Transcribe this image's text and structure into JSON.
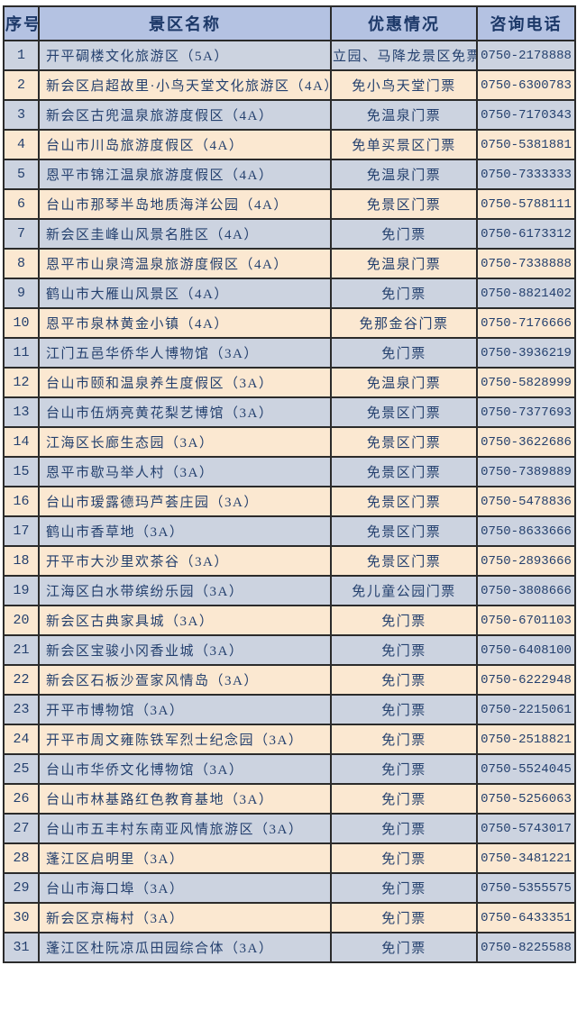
{
  "colors": {
    "header_bg": "#b4c2e2",
    "row_odd_bg": "#ccd3e0",
    "row_even_bg": "#fbe8d1",
    "border": "#2b2b2b",
    "text": "#24406e",
    "header_text": "#1c3868",
    "page_bg": "#ffffff"
  },
  "table": {
    "columns": [
      {
        "key": "index",
        "label": "序号"
      },
      {
        "key": "name",
        "label": "景区名称"
      },
      {
        "key": "discount",
        "label": "优惠情况"
      },
      {
        "key": "phone",
        "label": "咨询电话"
      }
    ],
    "rows": [
      {
        "index": "1",
        "name": "开平碉楼文化旅游区（5A）",
        "discount": "立园、马降龙景区免票",
        "phone": "0750-2178888"
      },
      {
        "index": "2",
        "name": "新会区启超故里·小鸟天堂文化旅游区（4A）",
        "discount": "免小鸟天堂门票",
        "phone": "0750-6300783"
      },
      {
        "index": "3",
        "name": "新会区古兜温泉旅游度假区（4A）",
        "discount": "免温泉门票",
        "phone": "0750-7170343"
      },
      {
        "index": "4",
        "name": "台山市川岛旅游度假区（4A）",
        "discount": "免单买景区门票",
        "phone": "0750-5381881"
      },
      {
        "index": "5",
        "name": "恩平市锦江温泉旅游度假区（4A）",
        "discount": "免温泉门票",
        "phone": "0750-7333333"
      },
      {
        "index": "6",
        "name": "台山市那琴半岛地质海洋公园（4A）",
        "discount": "免景区门票",
        "phone": "0750-5788111"
      },
      {
        "index": "7",
        "name": "新会区圭峰山风景名胜区（4A）",
        "discount": "免门票",
        "phone": "0750-6173312"
      },
      {
        "index": "8",
        "name": "恩平市山泉湾温泉旅游度假区（4A）",
        "discount": "免温泉门票",
        "phone": "0750-7338888"
      },
      {
        "index": "9",
        "name": "鹤山市大雁山风景区（4A）",
        "discount": "免门票",
        "phone": "0750-8821402"
      },
      {
        "index": "10",
        "name": "恩平市泉林黄金小镇（4A）",
        "discount": "免那金谷门票",
        "phone": "0750-7176666"
      },
      {
        "index": "11",
        "name": "江门五邑华侨华人博物馆（3A）",
        "discount": "免门票",
        "phone": "0750-3936219"
      },
      {
        "index": "12",
        "name": "台山市颐和温泉养生度假区（3A）",
        "discount": "免温泉门票",
        "phone": "0750-5828999"
      },
      {
        "index": "13",
        "name": "台山市伍炳亮黄花梨艺博馆（3A）",
        "discount": "免景区门票",
        "phone": "0750-7377693"
      },
      {
        "index": "14",
        "name": "江海区长廊生态园（3A）",
        "discount": "免景区门票",
        "phone": "0750-3622686"
      },
      {
        "index": "15",
        "name": "恩平市歇马举人村（3A）",
        "discount": "免景区门票",
        "phone": "0750-7389889"
      },
      {
        "index": "16",
        "name": "台山市瑷露德玛芦荟庄园（3A）",
        "discount": "免景区门票",
        "phone": "0750-5478836"
      },
      {
        "index": "17",
        "name": "鹤山市香草地（3A）",
        "discount": "免景区门票",
        "phone": "0750-8633666"
      },
      {
        "index": "18",
        "name": "开平市大沙里欢茶谷（3A）",
        "discount": "免景区门票",
        "phone": "0750-2893666"
      },
      {
        "index": "19",
        "name": "江海区白水带缤纷乐园（3A）",
        "discount": "免儿童公园门票",
        "phone": "0750-3808666"
      },
      {
        "index": "20",
        "name": "新会区古典家具城（3A）",
        "discount": "免门票",
        "phone": "0750-6701103"
      },
      {
        "index": "21",
        "name": "新会区宝骏小冈香业城（3A）",
        "discount": "免门票",
        "phone": "0750-6408100"
      },
      {
        "index": "22",
        "name": "新会区石板沙疍家风情岛（3A）",
        "discount": "免门票",
        "phone": "0750-6222948"
      },
      {
        "index": "23",
        "name": "开平市博物馆（3A）",
        "discount": "免门票",
        "phone": "0750-2215061"
      },
      {
        "index": "24",
        "name": "开平市周文雍陈铁军烈士纪念园（3A）",
        "discount": "免门票",
        "phone": "0750-2518821"
      },
      {
        "index": "25",
        "name": "台山市华侨文化博物馆（3A）",
        "discount": "免门票",
        "phone": "0750-5524045"
      },
      {
        "index": "26",
        "name": "台山市林基路红色教育基地（3A）",
        "discount": "免门票",
        "phone": "0750-5256063"
      },
      {
        "index": "27",
        "name": "台山市五丰村东南亚风情旅游区（3A）",
        "discount": "免门票",
        "phone": "0750-5743017"
      },
      {
        "index": "28",
        "name": "蓬江区启明里（3A）",
        "discount": "免门票",
        "phone": "0750-3481221"
      },
      {
        "index": "29",
        "name": "台山市海口埠（3A）",
        "discount": "免门票",
        "phone": "0750-5355575"
      },
      {
        "index": "30",
        "name": "新会区京梅村（3A）",
        "discount": "免门票",
        "phone": "0750-6433351"
      },
      {
        "index": "31",
        "name": "蓬江区杜阮凉瓜田园综合体（3A）",
        "discount": "免门票",
        "phone": "0750-8225588"
      }
    ]
  }
}
